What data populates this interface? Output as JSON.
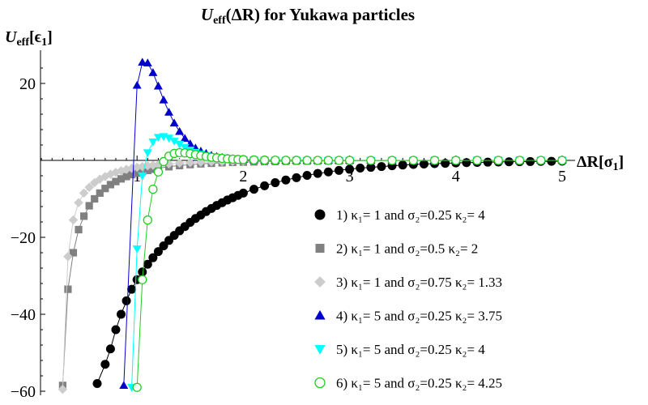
{
  "chart_data": {
    "type": "line",
    "title": "U_eff(ΔR) for Yukawa particles",
    "title_parts": {
      "main": "U",
      "sub": "eff",
      "rest": "(ΔR) for Yukawa particles"
    },
    "ylabel_parts": {
      "main": "U",
      "sub": "eff",
      "rest": "[ϵ",
      "sub2": "1",
      "end": "]"
    },
    "xlabel_parts": {
      "main": "ΔR[σ",
      "sub": "1",
      "end": "]"
    },
    "xlim": [
      0.0,
      5.0
    ],
    "ylim": [
      -60,
      27
    ],
    "x_ticks": [
      {
        "value": 1,
        "label": "1"
      },
      {
        "value": 2,
        "label": "2"
      },
      {
        "value": 3,
        "label": "3"
      },
      {
        "value": 4,
        "label": "4"
      },
      {
        "value": 5,
        "label": "5"
      }
    ],
    "y_ticks": [
      {
        "value": 20,
        "label": "20"
      },
      {
        "value": -20,
        "label": "−20"
      },
      {
        "value": -40,
        "label": "−40"
      },
      {
        "value": -60,
        "label": "−60"
      }
    ],
    "legend_position": "right",
    "legend": [
      {
        "label": "1) κ₁= 1 and σ₂=0.25 κ₂= 4"
      },
      {
        "label": "2) κ₁= 1 and σ₂=0.5 κ₂= 2"
      },
      {
        "label": "3) κ₁= 1 and σ₂=0.75 κ₂= 1.33"
      },
      {
        "label": "4) κ₁= 5 and σ₂=0.25 κ₂= 3.75"
      },
      {
        "label": "5) κ₁= 5 and σ₂=0.25 κ₂= 4"
      },
      {
        "label": "6) κ₁= 5 and σ₂=0.25 κ₂= 4.25"
      }
    ],
    "series": [
      {
        "color": "#000000",
        "marker": "disk",
        "x": [
          0.625,
          0.7,
          0.75,
          0.8,
          0.85,
          0.9,
          0.95,
          1.0,
          1.05,
          1.1,
          1.15,
          1.2,
          1.25,
          1.3,
          1.35,
          1.4,
          1.45,
          1.5,
          1.55,
          1.6,
          1.65,
          1.7,
          1.75,
          1.8,
          1.85,
          1.9,
          1.95,
          2.0,
          2.1,
          2.2,
          2.3,
          2.4,
          2.5,
          2.6,
          2.7,
          2.8,
          2.9,
          3.0,
          3.1,
          3.2,
          3.3,
          3.4,
          3.5,
          3.6,
          3.7,
          3.8,
          3.9,
          4.0,
          4.1,
          4.2,
          4.3,
          4.4,
          4.5,
          4.6,
          4.7,
          4.8,
          4.9,
          5.0
        ],
        "y": [
          -58.0,
          -53.0,
          -49.0,
          -44.0,
          -40.0,
          -36.5,
          -33.5,
          -31.0,
          -29.0,
          -27.0,
          -25.3,
          -23.7,
          -22.2,
          -20.8,
          -19.5,
          -18.3,
          -17.2,
          -16.1,
          -15.1,
          -14.2,
          -13.3,
          -12.5,
          -11.7,
          -11.0,
          -10.3,
          -9.7,
          -9.1,
          -8.5,
          -7.5,
          -6.6,
          -5.8,
          -5.1,
          -4.5,
          -3.9,
          -3.4,
          -3.0,
          -2.6,
          -2.3,
          -2.0,
          -1.8,
          -1.6,
          -1.4,
          -1.2,
          -1.05,
          -0.95,
          -0.85,
          -0.75,
          -0.65,
          -0.58,
          -0.52,
          -0.46,
          -0.41,
          -0.37,
          -0.33,
          -0.3,
          -0.27,
          -0.24,
          -0.22
        ]
      },
      {
        "color": "#808080",
        "marker": "square",
        "x": [
          0.3,
          0.35,
          0.4,
          0.45,
          0.5,
          0.55,
          0.6,
          0.65,
          0.7,
          0.75,
          0.8,
          0.85,
          0.9,
          0.95,
          1.0,
          1.05,
          1.1,
          1.15,
          1.2,
          1.3,
          1.4,
          1.5,
          1.6,
          1.7,
          1.8,
          1.9,
          2.0,
          2.1,
          2.2,
          2.3,
          2.4,
          2.5,
          2.6,
          2.7,
          2.8,
          2.9,
          3.0,
          3.2,
          3.4,
          3.6,
          3.8,
          4.0,
          4.2,
          4.4,
          4.6,
          4.8,
          5.0
        ],
        "y": [
          -58.5,
          -33.5,
          -24.0,
          -18.0,
          -14.5,
          -11.8,
          -10.0,
          -8.5,
          -7.3,
          -6.3,
          -5.5,
          -4.8,
          -4.2,
          -3.7,
          -3.3,
          -2.9,
          -2.6,
          -2.3,
          -2.05,
          -1.65,
          -1.35,
          -1.1,
          -0.9,
          -0.75,
          -0.62,
          -0.52,
          -0.44,
          -0.38,
          -0.33,
          -0.28,
          -0.24,
          -0.21,
          -0.18,
          -0.16,
          -0.14,
          -0.12,
          -0.11,
          -0.09,
          -0.07,
          -0.06,
          -0.05,
          -0.04,
          -0.03,
          -0.025,
          -0.02,
          -0.017,
          -0.015
        ]
      },
      {
        "color": "#cccccc",
        "marker": "diamond",
        "x": [
          0.3,
          0.35,
          0.4,
          0.45,
          0.5,
          0.55,
          0.6,
          0.65,
          0.7,
          0.75,
          0.8,
          0.85,
          0.9,
          0.95,
          1.0,
          1.05,
          1.1,
          1.15,
          1.2,
          1.3,
          1.4,
          1.5,
          1.6,
          1.7,
          1.8,
          1.9,
          2.0,
          2.2,
          2.4,
          2.6,
          2.8,
          3.0,
          3.2,
          3.4,
          3.6,
          3.8,
          4.0,
          4.2,
          4.4,
          4.6,
          4.8,
          5.0
        ],
        "y": [
          -59.5,
          -25.0,
          -15.5,
          -11.0,
          -8.5,
          -7.0,
          -5.8,
          -4.9,
          -4.2,
          -3.6,
          -3.1,
          -2.7,
          -2.35,
          -2.05,
          -1.8,
          -1.6,
          -1.42,
          -1.26,
          -1.12,
          -0.9,
          -0.72,
          -0.58,
          -0.47,
          -0.38,
          -0.31,
          -0.25,
          -0.2,
          -0.14,
          -0.1,
          -0.07,
          -0.05,
          -0.035,
          -0.025,
          -0.018,
          -0.013,
          -0.01,
          -0.007,
          -0.005,
          -0.004,
          -0.003,
          -0.002,
          -0.002
        ]
      },
      {
        "color": "#0000cd",
        "marker": "triangle-up",
        "x": [
          0.875,
          1.0,
          1.05,
          1.1,
          1.15,
          1.2,
          1.25,
          1.3,
          1.35,
          1.4,
          1.45,
          1.5,
          1.55,
          1.6,
          1.65,
          1.7,
          1.75,
          1.8,
          1.85,
          1.9,
          1.95,
          2.0,
          2.1,
          2.2,
          2.3,
          2.4,
          2.5,
          2.6,
          2.7,
          2.8,
          2.9,
          3.0,
          3.2,
          3.4,
          3.6,
          3.8,
          4.0,
          4.2,
          4.4,
          4.6,
          4.8,
          5.0
        ],
        "y": [
          -58.5,
          19.5,
          25.5,
          25.3,
          22.8,
          19.3,
          15.7,
          12.5,
          9.7,
          7.5,
          5.7,
          4.3,
          3.2,
          2.4,
          1.8,
          1.3,
          1.0,
          0.75,
          0.55,
          0.42,
          0.32,
          0.24,
          0.14,
          0.08,
          0.05,
          0.03,
          0.02,
          0.012,
          0.008,
          0.005,
          0.003,
          0.002,
          0.001,
          0.0,
          0.0,
          0.0,
          0.0,
          0.0,
          0.0,
          0.0,
          0.0,
          0.0
        ]
      },
      {
        "color": "#00ffff",
        "marker": "triangle-down",
        "x": [
          0.95,
          1.0,
          1.05,
          1.1,
          1.15,
          1.2,
          1.25,
          1.3,
          1.35,
          1.4,
          1.45,
          1.5,
          1.55,
          1.6,
          1.65,
          1.7,
          1.75,
          1.8,
          1.85,
          1.9,
          1.95,
          2.0,
          2.1,
          2.2,
          2.3,
          2.4,
          2.5,
          2.6,
          2.7,
          2.8,
          2.9,
          3.0,
          3.2,
          3.4,
          3.6,
          3.8,
          4.0,
          4.2,
          4.4,
          4.6,
          4.8,
          5.0
        ],
        "y": [
          -59.0,
          -23.0,
          -4.0,
          2.0,
          4.8,
          6.0,
          6.2,
          5.8,
          5.0,
          4.2,
          3.4,
          2.7,
          2.1,
          1.65,
          1.28,
          0.98,
          0.75,
          0.58,
          0.44,
          0.34,
          0.26,
          0.2,
          0.12,
          0.07,
          0.04,
          0.025,
          0.015,
          0.009,
          0.005,
          0.003,
          0.002,
          0.001,
          0.0,
          0.0,
          0.0,
          0.0,
          0.0,
          0.0,
          0.0,
          0.0,
          0.0,
          0.0
        ]
      },
      {
        "color": "#22cc22",
        "marker": "circle-open",
        "x": [
          1.0,
          1.05,
          1.1,
          1.15,
          1.2,
          1.25,
          1.3,
          1.35,
          1.4,
          1.45,
          1.5,
          1.55,
          1.6,
          1.65,
          1.7,
          1.75,
          1.8,
          1.85,
          1.9,
          1.95,
          2.0,
          2.1,
          2.2,
          2.3,
          2.4,
          2.5,
          2.6,
          2.7,
          2.8,
          2.9,
          3.0,
          3.2,
          3.4,
          3.6,
          3.8,
          4.0,
          4.2,
          4.4,
          4.6,
          4.8,
          5.0
        ],
        "y": [
          -59.0,
          -31.0,
          -15.5,
          -7.5,
          -3.0,
          -0.3,
          1.1,
          1.8,
          2.0,
          1.95,
          1.75,
          1.5,
          1.25,
          1.02,
          0.82,
          0.66,
          0.52,
          0.41,
          0.32,
          0.25,
          0.2,
          0.12,
          0.07,
          0.045,
          0.028,
          0.017,
          0.01,
          0.006,
          0.004,
          0.002,
          0.001,
          0.0,
          0.0,
          0.0,
          0.0,
          0.0,
          0.0,
          0.0,
          0.0,
          0.0,
          0.0
        ]
      }
    ]
  }
}
